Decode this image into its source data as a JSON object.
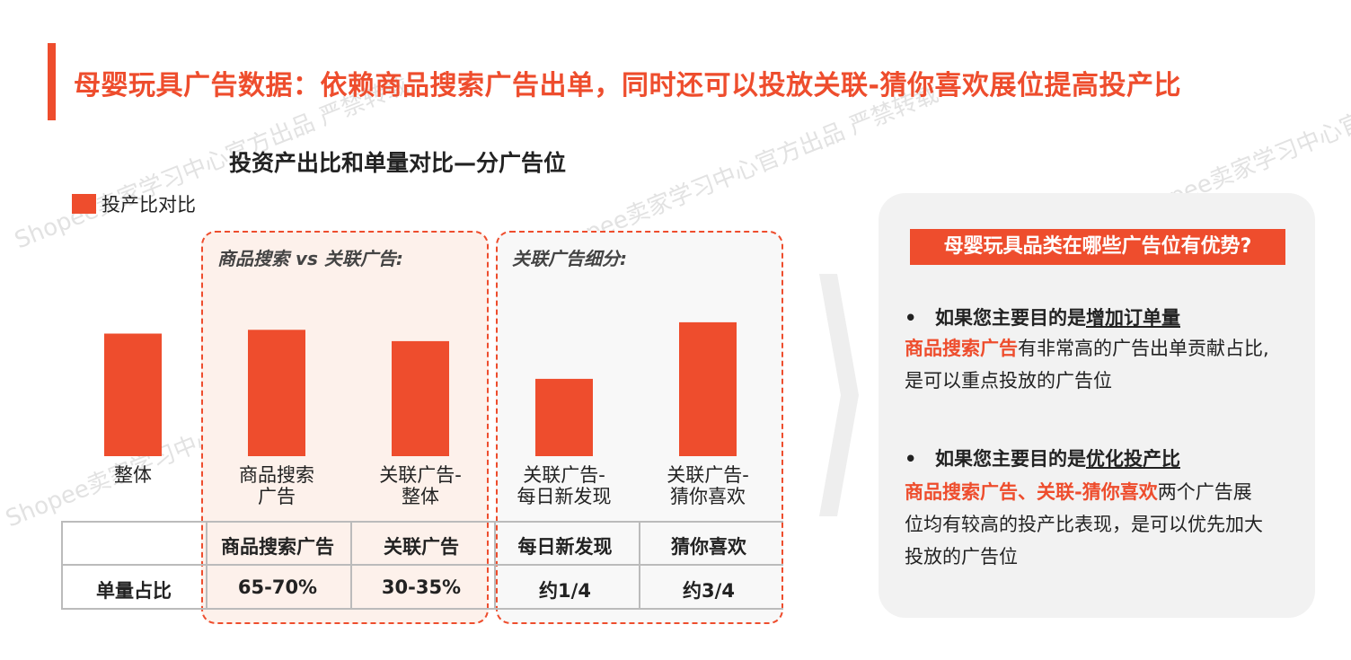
{
  "page_title": "母婴玩具广告数据：依赖商品搜索广告出单，同时还可以投放关联-猜你喜欢展位提高投产比",
  "chart_data": {
    "type": "bar",
    "title": "投资产出比和单量对比—分广告位",
    "legend": "投产比对比",
    "categories": [
      {
        "line1": "整体",
        "line2": ""
      },
      {
        "line1": "商品搜索",
        "line2": "广告"
      },
      {
        "line1": "关联广告-",
        "line2": "整体"
      },
      {
        "line1": "关联广告-",
        "line2": "每日新发现"
      },
      {
        "line1": "关联广告-",
        "line2": "猜你喜欢"
      }
    ],
    "values": [
      65,
      67,
      61,
      41,
      71
    ],
    "ylim": [
      0,
      100
    ],
    "bar_color": "#ee4d2d",
    "group_labels": [
      "商品搜索 vs 关联广告:",
      "关联广告细分:"
    ]
  },
  "table": {
    "headers": [
      "商品搜索广告",
      "关联广告",
      "每日新发现",
      "猜你喜欢"
    ],
    "row_label": "单量占比",
    "values": [
      "65-70%",
      "30-35%",
      "约1/4",
      "约3/4"
    ]
  },
  "panel": {
    "title": "母婴玩具品类在哪些广告位有优势?",
    "bullet1": {
      "prefix": "如果您主要目的是",
      "underline": "增加订单量",
      "highlight": "商品搜索广告",
      "line1_rest": "有非常高的广告出单贡献占比,",
      "line2": "是可以重点投放的广告位"
    },
    "bullet2": {
      "prefix": "如果您主要目的是",
      "underline": "优化投产比",
      "highlight": "商品搜索广告、关联-猜你喜欢",
      "line1_rest": "两个广告展",
      "line2": "位均有较高的投产比表现，是可以优先加大",
      "line3": "投放的广告位"
    }
  },
  "bullet_symbol": "•",
  "watermark": "Shopee卖家学习中心官方出品 严禁转载",
  "colors": {
    "accent": "#ee4d2d"
  }
}
